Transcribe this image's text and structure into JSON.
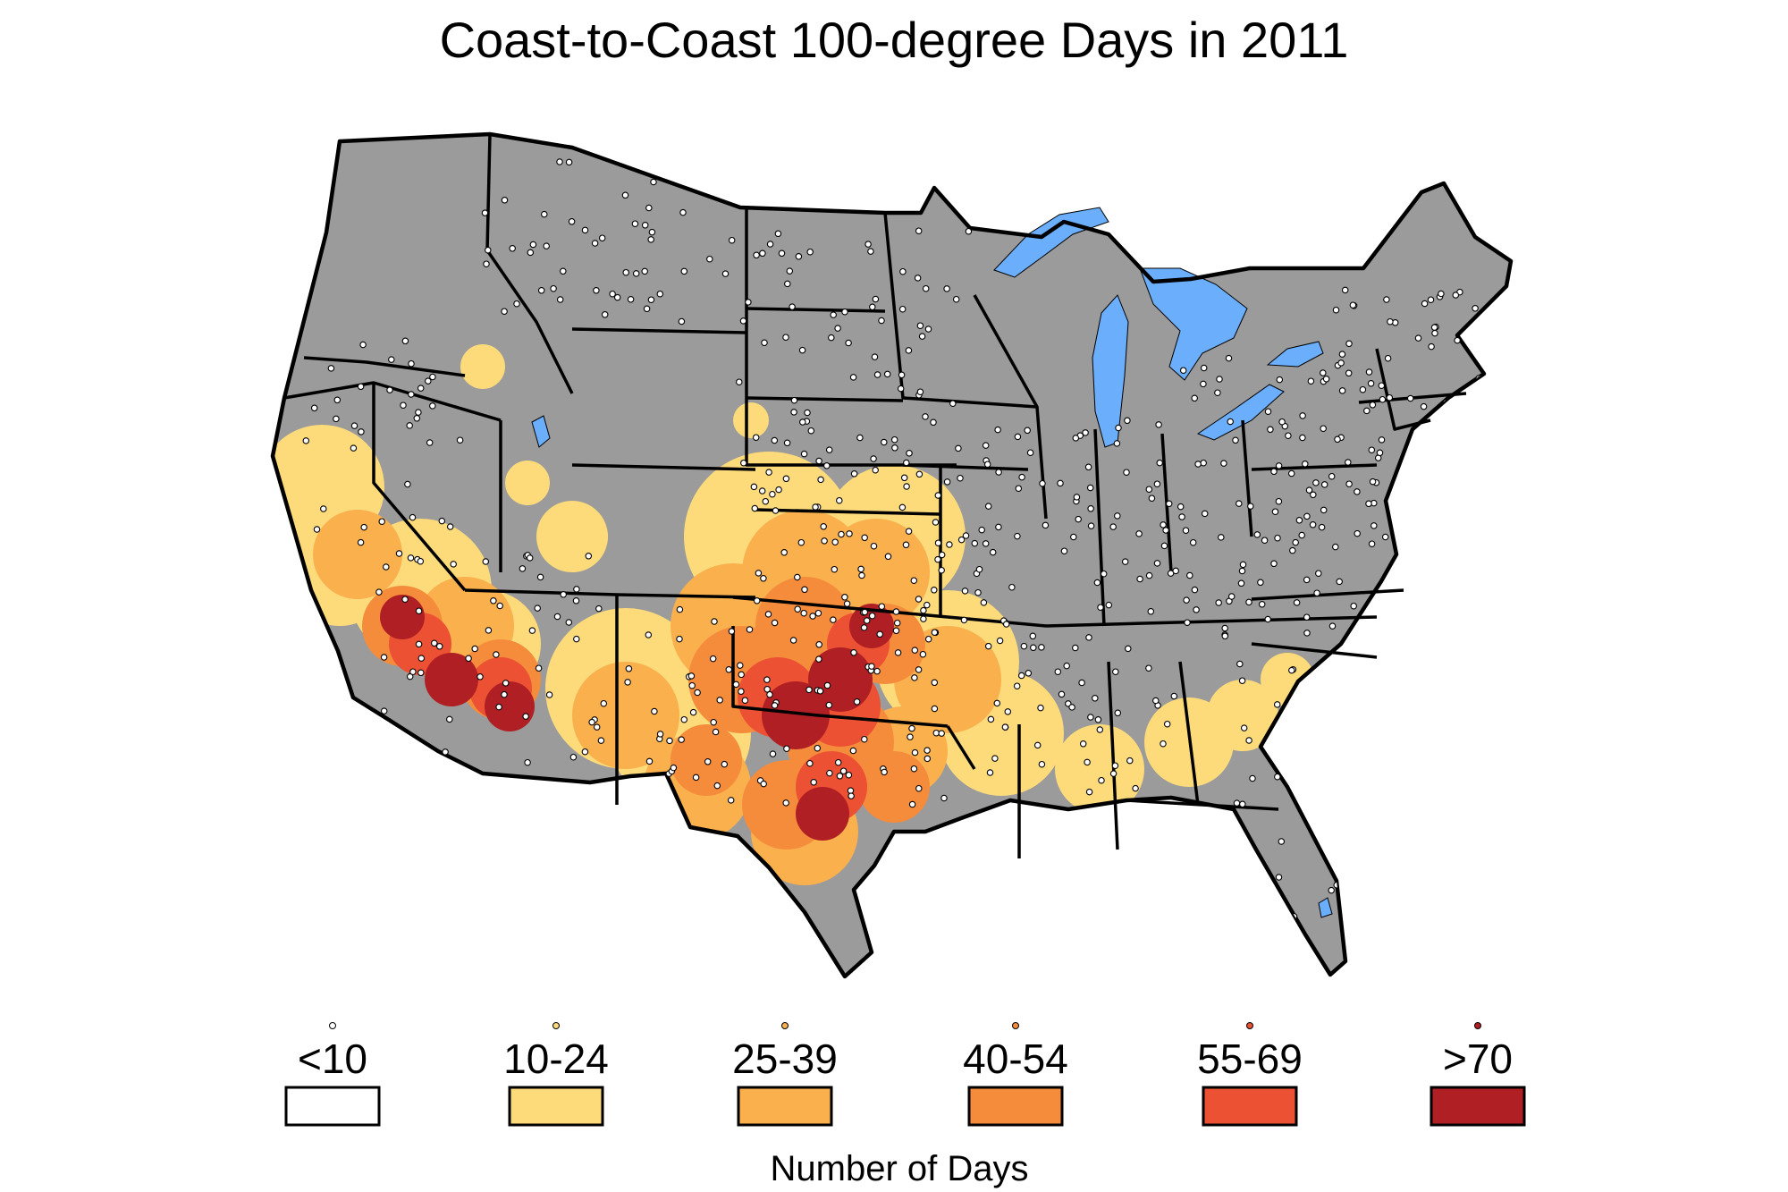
{
  "title": "Coast-to-Coast 100-degree Days in 2011",
  "colors": {
    "land": "#9b9b9b",
    "water": "#6aaefc",
    "border": "#000000",
    "station_fill": "#ffffff"
  },
  "legend": {
    "caption": "Number of Days",
    "bins": [
      {
        "label": "<10",
        "color": "#ffffff",
        "dot_color": "#ffffff"
      },
      {
        "label": "10-24",
        "color": "#fddb7a",
        "dot_color": "#fddb7a"
      },
      {
        "label": "25-39",
        "color": "#f9b04d",
        "dot_color": "#f9b04d"
      },
      {
        "label": "40-54",
        "color": "#f58c3c",
        "dot_color": "#f58c3c"
      },
      {
        "label": "55-69",
        "color": "#ec5133",
        "dot_color": "#ec5133"
      },
      {
        "label": ">70",
        "color": "#b01f24",
        "dot_color": "#b01f24"
      }
    ]
  },
  "map": {
    "subject": "contiguous United States",
    "features": [
      "state-borders",
      "great-lakes",
      "weather-stations",
      "heat-day-shading"
    ]
  }
}
